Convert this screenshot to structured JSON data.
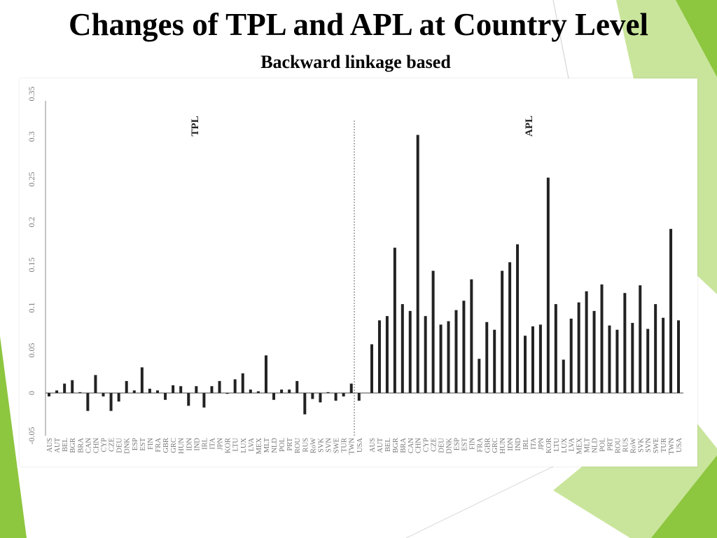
{
  "slide": {
    "title": "Changes of TPL and APL at Country Level",
    "subtitle": "Backward linkage based"
  },
  "theme": {
    "accent_green": "#8dc63f",
    "light_green": "#b7dc7e",
    "bar_color": "#222222",
    "axis_color": "#888888"
  },
  "chart_data": {
    "type": "bar",
    "title": "",
    "xlabel": "",
    "ylabel": "",
    "ylim": [
      -0.05,
      0.35
    ],
    "yticks": [
      "-0.05",
      "0",
      "0.05",
      "0.1",
      "0.15",
      "0.2",
      "0.25",
      "0.3",
      "0.35"
    ],
    "ytick_values": [
      -0.05,
      0,
      0.05,
      0.1,
      0.15,
      0.2,
      0.25,
      0.3,
      0.35
    ],
    "grid": false,
    "categories": [
      "AUS",
      "AUT",
      "BEL",
      "BGR",
      "BRA",
      "CAN",
      "CHN",
      "CYP",
      "CZE",
      "DEU",
      "DNK",
      "ESP",
      "EST",
      "FIN",
      "FRA",
      "GBR",
      "GRC",
      "HUN",
      "IDN",
      "IND",
      "IRL",
      "ITA",
      "JPN",
      "KOR",
      "LTU",
      "LUX",
      "LVA",
      "MEX",
      "MLT",
      "NLD",
      "POL",
      "PRT",
      "ROU",
      "RUS",
      "RoW",
      "SVK",
      "SVN",
      "SWE",
      "TUR",
      "TWN",
      "USA"
    ],
    "series": [
      {
        "name": "TPL",
        "values": [
          -0.004,
          0.003,
          0.011,
          0.015,
          0.001,
          -0.021,
          0.021,
          -0.004,
          -0.021,
          -0.01,
          0.014,
          0.003,
          0.03,
          0.005,
          0.003,
          -0.008,
          0.009,
          0.008,
          -0.015,
          0.008,
          -0.017,
          0.008,
          0.014,
          -0.001,
          0.016,
          0.023,
          0.004,
          0.002,
          0.044,
          -0.008,
          0.004,
          0.004,
          0.014,
          -0.025,
          -0.007,
          -0.011,
          0.001,
          -0.009,
          -0.004,
          0.011,
          -0.009
        ]
      },
      {
        "name": "APL",
        "values": [
          0.057,
          0.085,
          0.09,
          0.17,
          0.104,
          0.096,
          0.302,
          0.09,
          0.143,
          0.08,
          0.084,
          0.097,
          0.108,
          0.133,
          0.04,
          0.083,
          0.074,
          0.143,
          0.153,
          0.174,
          0.067,
          0.078,
          0.08,
          0.252,
          0.104,
          0.039,
          0.087,
          0.106,
          0.119,
          0.096,
          0.127,
          0.079,
          0.074,
          0.117,
          0.082,
          0.126,
          0.075,
          0.104,
          0.088,
          0.192,
          0.085
        ]
      }
    ]
  }
}
